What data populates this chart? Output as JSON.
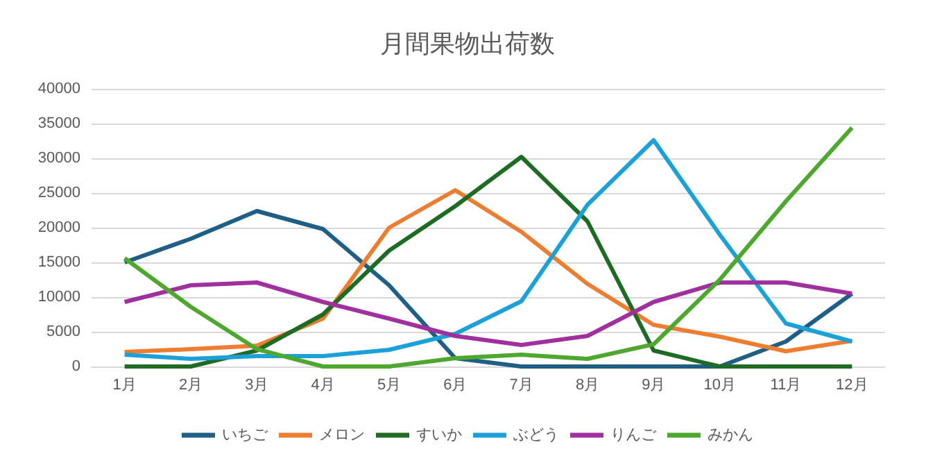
{
  "chart_data": {
    "type": "line",
    "title": "月間果物出荷数",
    "categories": [
      "1月",
      "2月",
      "3月",
      "4月",
      "5月",
      "6月",
      "7月",
      "8月",
      "9月",
      "10月",
      "11月",
      "12月"
    ],
    "series": [
      {
        "name": "いちご",
        "color": "#1f5f85",
        "values": [
          15000,
          18400,
          22400,
          19800,
          11700,
          1200,
          0,
          0,
          0,
          0,
          3600,
          10500
        ]
      },
      {
        "name": "メロン",
        "color": "#ed7d31",
        "values": [
          2100,
          2500,
          3000,
          6900,
          20000,
          25400,
          19400,
          11900,
          6000,
          4300,
          2200,
          3700
        ]
      },
      {
        "name": "すいか",
        "color": "#1e6b24",
        "values": [
          0,
          0,
          2300,
          7500,
          16700,
          23100,
          30200,
          20900,
          2300,
          0,
          0,
          0
        ]
      },
      {
        "name": "ぶどう",
        "color": "#1ba1d8",
        "values": [
          1700,
          1100,
          1500,
          1500,
          2400,
          4700,
          9400,
          23300,
          32600,
          19000,
          6200,
          3600
        ]
      },
      {
        "name": "りんご",
        "color": "#a0309e",
        "values": [
          9300,
          11700,
          12100,
          9300,
          6900,
          4400,
          3100,
          4400,
          9300,
          12100,
          12100,
          10500
        ]
      },
      {
        "name": "みかん",
        "color": "#4ea72e",
        "values": [
          15600,
          8600,
          2500,
          0,
          0,
          1200,
          1700,
          1100,
          3200,
          12500,
          23800,
          34400
        ]
      }
    ],
    "ylim": [
      0,
      40000
    ],
    "yticks": [
      0,
      5000,
      10000,
      15000,
      20000,
      25000,
      30000,
      35000,
      40000
    ],
    "grid": "y",
    "legend": "bottom",
    "marker": "none",
    "line_style": "solid"
  }
}
